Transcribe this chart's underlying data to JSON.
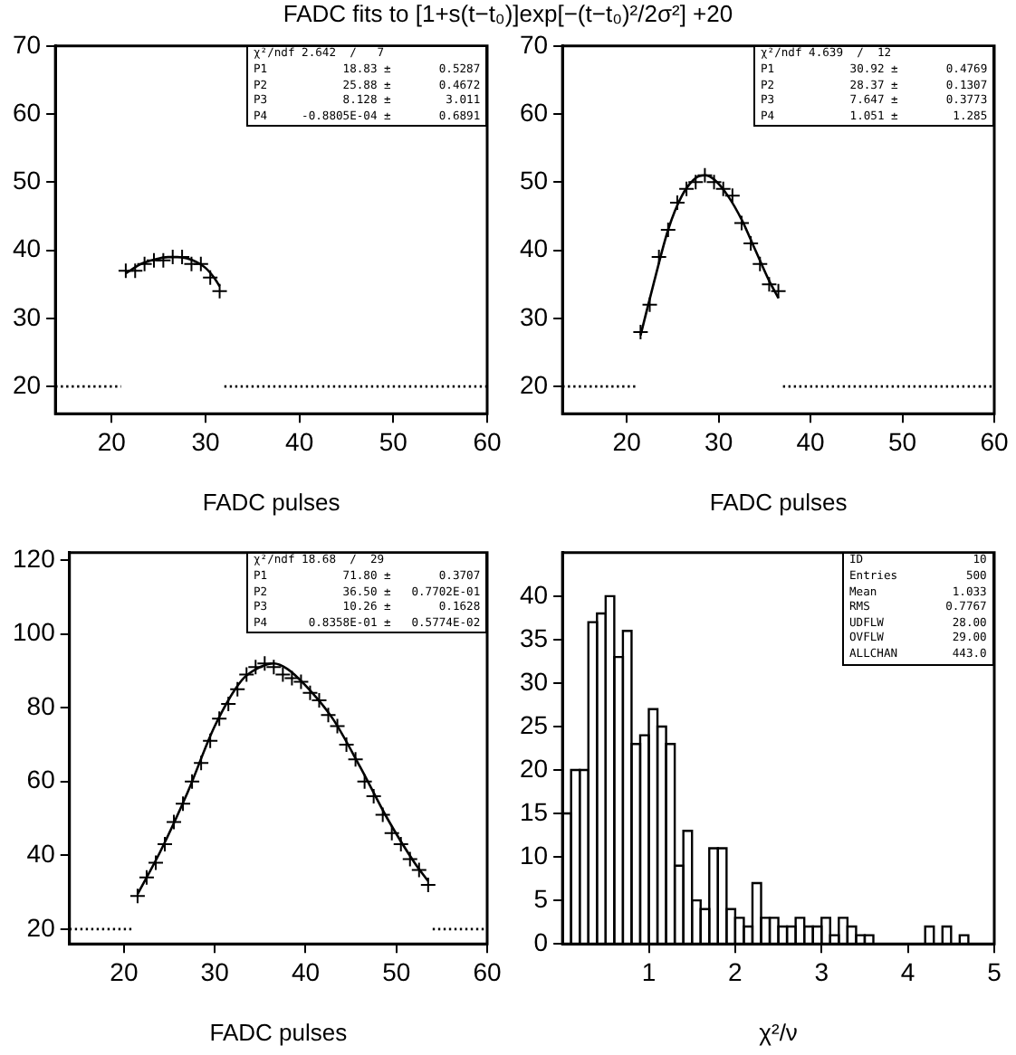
{
  "chart_data": [
    {
      "type": "scatter",
      "title": "FADC fits to [1+s(t−t₀)]exp[−(t−t₀)²/2σ²] +20",
      "xlabel": "FADC pulses",
      "xlim": [
        14,
        60
      ],
      "xticks": [
        20,
        30,
        40,
        50,
        60
      ],
      "ylim": [
        16,
        70
      ],
      "yticks": [
        20,
        30,
        40,
        50,
        60,
        70
      ],
      "series": [
        {
          "type": "scatter",
          "marker": "cross",
          "color": "#000000",
          "x": [
            21.5,
            22.5,
            23.5,
            24.5,
            25.5,
            26.5,
            27.5,
            28.5,
            29.5,
            30.5,
            31.5
          ],
          "values": [
            37,
            37,
            38,
            38.5,
            38.5,
            39,
            39,
            38,
            38,
            36,
            34
          ]
        },
        {
          "type": "line",
          "color": "#000000",
          "x": [
            21.5,
            23,
            24.5,
            26,
            27,
            28,
            29,
            30,
            31,
            31.5
          ],
          "values": [
            36.6,
            37.9,
            38.6,
            39,
            39,
            38.8,
            38.3,
            37.4,
            35.8,
            34.7
          ]
        },
        {
          "type": "line",
          "line_style": "dotted",
          "color": "#000000",
          "x": [
            14,
            21
          ],
          "values": [
            20,
            20
          ]
        },
        {
          "type": "line",
          "line_style": "dotted",
          "color": "#000000",
          "x": [
            32,
            60
          ],
          "values": [
            20,
            20
          ]
        }
      ],
      "annotations": [
        "χ²/ndf 2.642  /   7",
        "P1           18.83 ±       0.5287",
        "P2           25.88 ±       0.4672",
        "P3           8.128 ±        3.011",
        "P4     -0.8805E-04 ±       0.6891"
      ]
    },
    {
      "type": "scatter",
      "xlabel": "FADC pulses",
      "xlim": [
        13,
        60
      ],
      "xticks": [
        20,
        30,
        40,
        50,
        60
      ],
      "ylim": [
        16,
        70
      ],
      "yticks": [
        20,
        30,
        40,
        50,
        60,
        70
      ],
      "series": [
        {
          "type": "scatter",
          "marker": "cross",
          "color": "#000000",
          "x": [
            21.5,
            22.5,
            23.5,
            24.5,
            25.5,
            26.5,
            27.5,
            28.5,
            29.5,
            30.5,
            31.5,
            32.5,
            33.5,
            34.5,
            35.5,
            36.5
          ],
          "values": [
            28,
            32,
            39,
            43,
            47,
            49,
            50,
            51,
            50,
            49,
            48,
            44,
            41,
            38,
            35,
            34
          ]
        },
        {
          "type": "line",
          "color": "#000000",
          "x": [
            21.5,
            23,
            24.5,
            26,
            27.5,
            28.5,
            29.5,
            31,
            32.5,
            34,
            35.5,
            36.5
          ],
          "values": [
            27.5,
            35.5,
            43,
            48,
            50.6,
            51,
            50.4,
            48,
            44.5,
            40,
            35.5,
            33
          ]
        },
        {
          "type": "line",
          "line_style": "dotted",
          "color": "#000000",
          "x": [
            13,
            21
          ],
          "values": [
            20,
            20
          ]
        },
        {
          "type": "line",
          "line_style": "dotted",
          "color": "#000000",
          "x": [
            37,
            60
          ],
          "values": [
            20,
            20
          ]
        }
      ],
      "annotations": [
        "χ²/ndf 4.639  /  12",
        "P1           30.92 ±       0.4769",
        "P2           28.37 ±       0.1307",
        "P3           7.647 ±       0.3773",
        "P4           1.051 ±        1.285"
      ]
    },
    {
      "type": "scatter",
      "xlabel": "FADC pulses",
      "xlim": [
        14,
        60
      ],
      "xticks": [
        20,
        30,
        40,
        50,
        60
      ],
      "ylim": [
        16,
        122
      ],
      "yticks": [
        20,
        40,
        60,
        80,
        100,
        120
      ],
      "series": [
        {
          "type": "scatter",
          "marker": "cross",
          "color": "#000000",
          "x": [
            21.5,
            22.5,
            23.5,
            24.5,
            25.5,
            26.5,
            27.5,
            28.5,
            29.5,
            30.5,
            31.5,
            32.5,
            33.5,
            34.5,
            35.5,
            36.5,
            37.5,
            38.5,
            39.5,
            40.5,
            41.5,
            42.5,
            43.5,
            44.5,
            45.5,
            46.5,
            47.5,
            48.5,
            49.5,
            50.5,
            51.5,
            52.5,
            53.5
          ],
          "values": [
            29,
            34,
            38,
            43,
            49,
            54,
            60,
            65,
            71,
            77,
            81,
            85,
            89,
            91,
            92,
            91,
            89,
            88,
            87,
            84,
            82,
            78,
            75,
            70,
            66,
            60,
            56,
            51,
            46,
            43,
            39,
            36,
            32
          ]
        },
        {
          "type": "line",
          "color": "#000000",
          "x": [
            21.5,
            24,
            27,
            30,
            33,
            35,
            36.5,
            38,
            40,
            43,
            46,
            49,
            52,
            53.5
          ],
          "values": [
            29.5,
            41,
            57,
            75,
            87.5,
            91,
            92,
            90.5,
            86,
            77,
            64,
            50,
            38,
            33
          ]
        },
        {
          "type": "line",
          "line_style": "dotted",
          "color": "#000000",
          "x": [
            14,
            21
          ],
          "values": [
            20,
            20
          ]
        },
        {
          "type": "line",
          "line_style": "dotted",
          "color": "#000000",
          "x": [
            54,
            60
          ],
          "values": [
            20,
            20
          ]
        }
      ],
      "annotations": [
        "χ²/ndf 18.68  /  29",
        "P1           71.80 ±       0.3707",
        "P2           36.50 ±   0.7702E-01",
        "P3           10.26 ±       0.1628",
        "P4      0.8358E-01 ±   0.5774E-02"
      ]
    },
    {
      "type": "histogram",
      "xlabel": "χ²/ν",
      "xlim": [
        0,
        5
      ],
      "xticks": [
        1,
        2,
        3,
        4,
        5
      ],
      "ylim": [
        0,
        45
      ],
      "yticks": [
        0,
        5,
        10,
        15,
        20,
        25,
        30,
        35,
        40
      ],
      "color": "#000000",
      "bins": [
        0,
        0.1,
        0.2,
        0.3,
        0.4,
        0.5,
        0.6,
        0.7,
        0.8,
        0.9,
        1,
        1.1,
        1.2,
        1.3,
        1.4,
        1.5,
        1.6,
        1.7,
        1.8,
        1.9,
        2,
        2.1,
        2.2,
        2.3,
        2.4,
        2.5,
        2.6,
        2.7,
        2.8,
        2.9,
        3,
        3.1,
        3.2,
        3.3,
        3.4,
        3.5,
        3.6,
        3.7,
        3.8,
        3.9,
        4,
        4.1,
        4.2,
        4.3,
        4.4,
        4.5,
        4.6,
        4.7,
        4.8,
        4.9,
        5
      ],
      "values": [
        15,
        20,
        20,
        37,
        38,
        40,
        33,
        36,
        23,
        24,
        27,
        25,
        23,
        9,
        13,
        5,
        4,
        11,
        11,
        4,
        3,
        2,
        7,
        3,
        3,
        2,
        2,
        3,
        2,
        2,
        3,
        1,
        3,
        2,
        1,
        1,
        0,
        0,
        0,
        0,
        0,
        0,
        2,
        0,
        2,
        0,
        1,
        0,
        0,
        0
      ],
      "annotations": [
        "ID                10",
        "Entries          500",
        "Mean           1.033",
        "RMS           0.7767",
        "UDFLW          28.00",
        "OVFLW          29.00",
        "ALLCHAN        443.0"
      ]
    }
  ]
}
